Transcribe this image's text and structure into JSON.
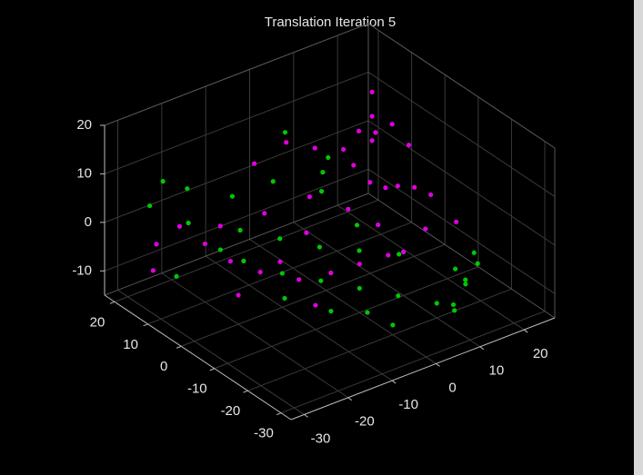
{
  "chart_data": {
    "type": "scatter3d",
    "title": "Translation Iteration 5",
    "xlim": [
      -33,
      27
    ],
    "ylim": [
      -33,
      23
    ],
    "zlim": [
      -15,
      20
    ],
    "xticks": [
      -30,
      -20,
      -10,
      0,
      10,
      20
    ],
    "yticks": [
      -30,
      -20,
      -10,
      0,
      10,
      20
    ],
    "zticks": [
      -10,
      0,
      10,
      20
    ],
    "grid": true,
    "series": [
      {
        "color": "#e000e0",
        "x": [
          15,
          15,
          15,
          15,
          14,
          14,
          15,
          16,
          13,
          15,
          18,
          18,
          18,
          -20,
          -22,
          -18,
          -15,
          -10,
          -5,
          0,
          5,
          -25,
          -15,
          -8,
          0,
          5,
          8,
          -12,
          -3,
          10,
          5,
          0,
          -5,
          10,
          -20,
          -10,
          20,
          22,
          -28
        ],
        "y": [
          -5,
          0,
          5,
          10,
          -8,
          -3,
          2,
          8,
          12,
          -10,
          10,
          10,
          10,
          10,
          15,
          5,
          0,
          -5,
          -8,
          -10,
          -12,
          18,
          12,
          8,
          5,
          0,
          -5,
          -2,
          2,
          5,
          10,
          12,
          15,
          -10,
          0,
          -10,
          -5,
          -10,
          15
        ],
        "z": [
          12,
          14,
          10,
          8,
          5,
          3,
          0,
          -2,
          4,
          -3,
          15,
          10,
          5,
          -3,
          -1,
          -5,
          -6,
          -7,
          -6,
          -5,
          -4,
          -5,
          -2,
          0,
          2,
          0,
          -2,
          -4,
          -3,
          5,
          8,
          10,
          6,
          -6,
          -9,
          -10,
          0,
          -4,
          -8
        ]
      },
      {
        "color": "#00c800",
        "x": [
          -18,
          -15,
          -10,
          -5,
          0,
          5,
          10,
          -12,
          -6,
          0,
          6,
          12,
          -20,
          -25,
          -22,
          -18,
          5,
          8,
          3,
          10,
          12,
          14,
          11,
          15,
          -2,
          -8,
          -14,
          0,
          7,
          -3,
          2,
          -28,
          18,
          20,
          -10
        ],
        "y": [
          8,
          5,
          0,
          -5,
          -10,
          -15,
          -20,
          10,
          6,
          2,
          -2,
          -6,
          15,
          20,
          20,
          18,
          8,
          10,
          5,
          -25,
          -26,
          -27,
          -24,
          -22,
          -15,
          -12,
          -6,
          -20,
          0,
          12,
          15,
          8,
          -15,
          -18,
          15
        ],
        "z": [
          -4,
          -6,
          -8,
          -9,
          -10,
          -11,
          -12,
          -3,
          -5,
          -7,
          -8,
          -9,
          -1,
          2,
          6,
          4,
          0,
          5,
          6,
          -10,
          -6,
          -2,
          -12,
          -8,
          -12,
          -11,
          -9,
          -13,
          -4,
          3,
          10,
          -6,
          -10,
          -6,
          1
        ]
      }
    ]
  }
}
